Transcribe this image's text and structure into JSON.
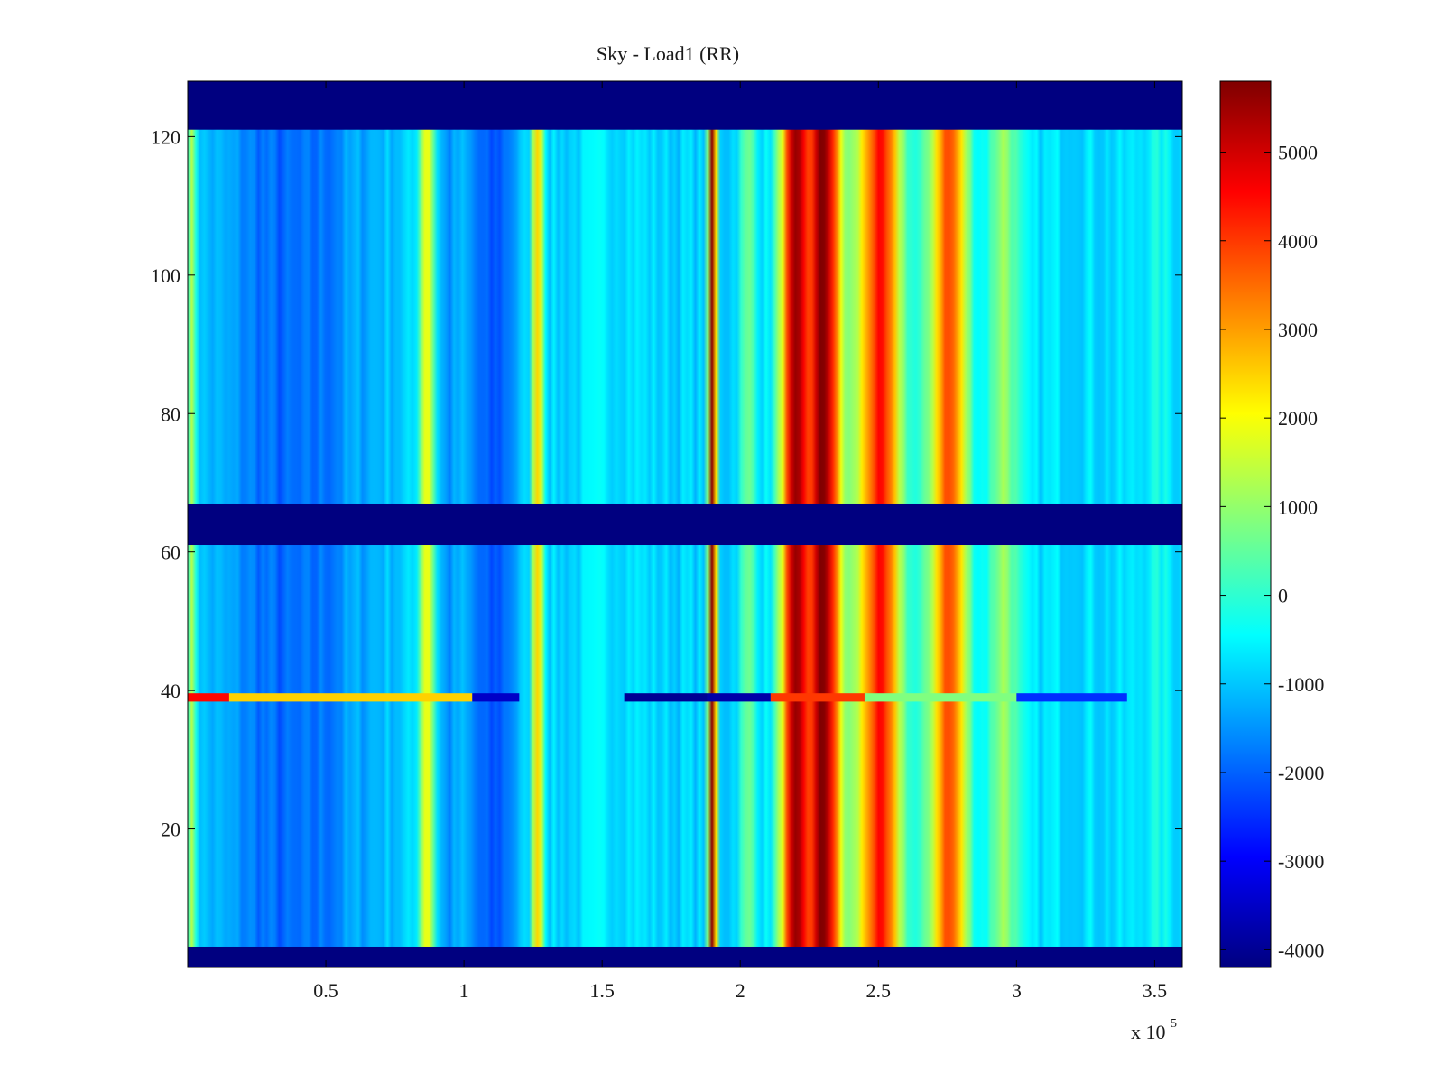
{
  "chart_data": {
    "type": "heatmap",
    "title": "Sky - Load1 (RR)",
    "xlabel": "",
    "ylabel": "",
    "x_exponent_label": "x 10",
    "x_exponent_power": "5",
    "xlim": [
      0,
      3.6
    ],
    "ylim": [
      0,
      128
    ],
    "x_ticks": [
      0.5,
      1,
      1.5,
      2,
      2.5,
      3,
      3.5
    ],
    "x_tick_labels": [
      "0.5",
      "1",
      "1.5",
      "2",
      "2.5",
      "3",
      "3.5"
    ],
    "y_ticks": [
      20,
      40,
      60,
      80,
      100,
      120
    ],
    "y_tick_labels": [
      "20",
      "40",
      "60",
      "80",
      "100",
      "120"
    ],
    "colormap": "jet",
    "clim": [
      -4200,
      5800
    ],
    "colorbar_ticks": [
      5000,
      4000,
      3000,
      2000,
      1000,
      0,
      -1000,
      -2000,
      -3000,
      -4000
    ],
    "colorbar_tick_labels": [
      "5000",
      "4000",
      "3000",
      "2000",
      "1000",
      "0",
      "-1000",
      "-2000",
      "-3000",
      "-4000"
    ],
    "masked_rows": [
      {
        "y_from": 0,
        "y_to": 3,
        "value": -4200
      },
      {
        "y_from": 61,
        "y_to": 67,
        "value": -4200
      },
      {
        "y_from": 121,
        "y_to": 128,
        "value": -4200
      }
    ],
    "spectral_features": [
      {
        "x": 0.02,
        "width": 0.03,
        "value": 1500
      },
      {
        "x": 0.38,
        "width": 0.35,
        "value": -2000
      },
      {
        "x": 0.87,
        "width": 0.04,
        "value": 2200
      },
      {
        "x": 0.95,
        "width": 0.05,
        "value": -1500
      },
      {
        "x": 1.1,
        "width": 0.12,
        "value": -2200
      },
      {
        "x": 1.27,
        "width": 0.03,
        "value": 2800
      },
      {
        "x": 1.55,
        "width": 0.15,
        "value": -600
      },
      {
        "x": 1.9,
        "width": 0.02,
        "value": 5800
      },
      {
        "x": 2.03,
        "width": 0.05,
        "value": 500
      },
      {
        "x": 2.2,
        "width": 0.08,
        "value": 5200
      },
      {
        "x": 2.3,
        "width": 0.09,
        "value": 5800
      },
      {
        "x": 2.5,
        "width": 0.12,
        "value": 4200
      },
      {
        "x": 2.75,
        "width": 0.1,
        "value": 3800
      },
      {
        "x": 2.82,
        "width": 0.005,
        "value": 5800
      },
      {
        "x": 2.95,
        "width": 0.08,
        "value": 1200
      },
      {
        "x": 3.2,
        "width": 0.2,
        "value": -700
      },
      {
        "x": 3.5,
        "width": 0.1,
        "value": -400
      }
    ],
    "anomalous_row": {
      "y": 39,
      "segments": [
        {
          "x_from": 0.0,
          "x_to": 0.15,
          "value": 4500
        },
        {
          "x_from": 0.15,
          "x_to": 1.03,
          "value": 2500
        },
        {
          "x_from": 1.03,
          "x_to": 1.2,
          "value": -3500
        },
        {
          "x_from": 1.58,
          "x_to": 1.88,
          "value": -4000
        },
        {
          "x_from": 1.88,
          "x_to": 2.11,
          "value": -3800
        },
        {
          "x_from": 2.11,
          "x_to": 2.45,
          "value": 4000
        },
        {
          "x_from": 2.45,
          "x_to": 3.0,
          "value": 800
        },
        {
          "x_from": 3.0,
          "x_to": 3.4,
          "value": -2500
        }
      ]
    }
  }
}
